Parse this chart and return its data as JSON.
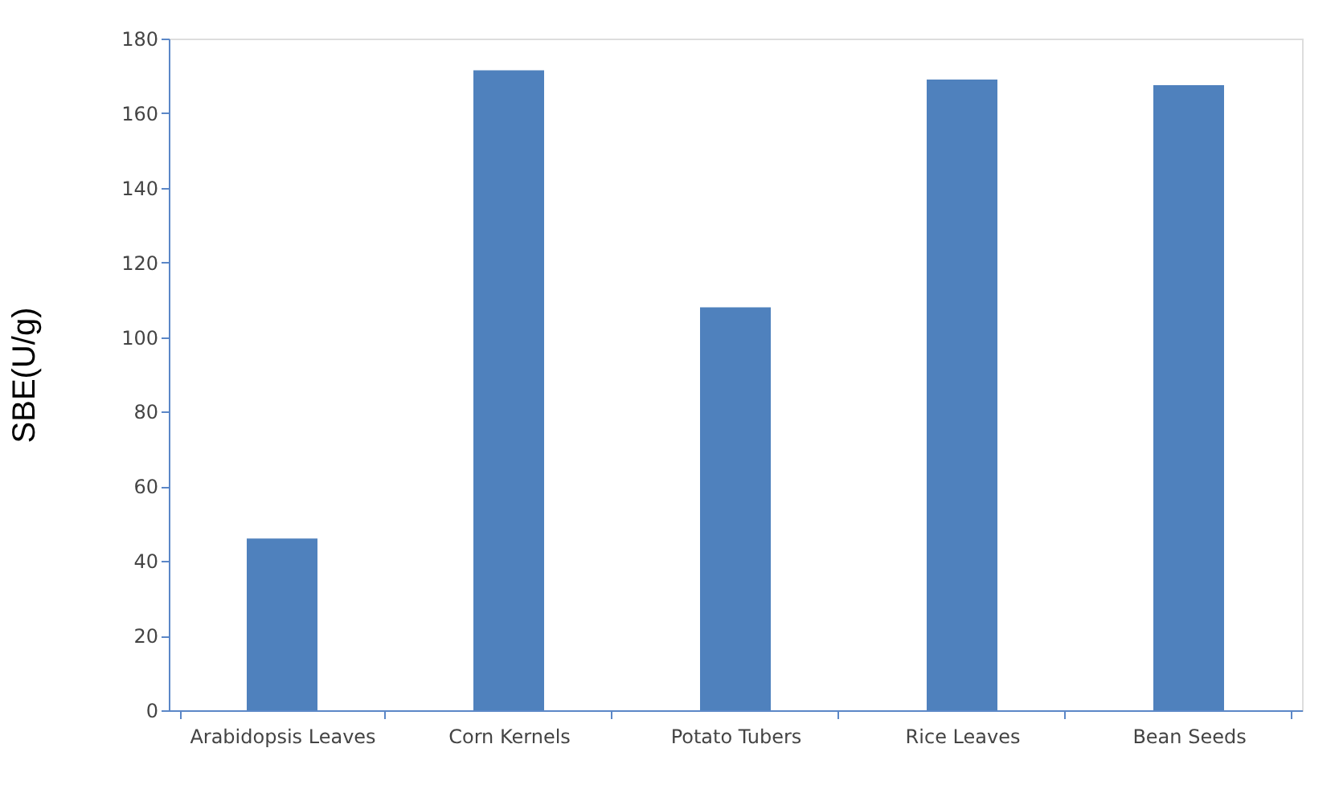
{
  "chart_data": {
    "type": "bar",
    "ylabel": "SBE(U/g)",
    "categories": [
      "Arabidopsis Leaves",
      "Corn Kernels",
      "Potato Tubers",
      "Rice Leaves",
      "Bean Seeds"
    ],
    "values": [
      46,
      171.5,
      108,
      169,
      167.5
    ],
    "color": "#4f81bd",
    "ylim": [
      0,
      180
    ],
    "yticks": [
      0,
      20,
      40,
      60,
      80,
      100,
      120,
      140,
      160,
      180
    ],
    "grid": false
  }
}
